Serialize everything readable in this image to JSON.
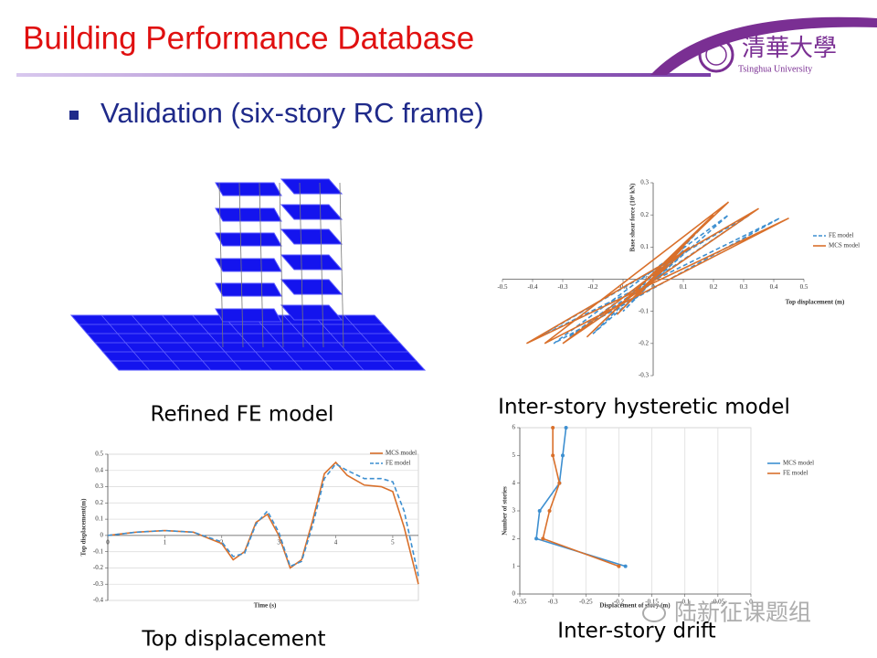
{
  "header": {
    "title": "Building Performance Database",
    "logo_text": "清華大學",
    "logo_subtext": "Tsinghua University"
  },
  "bullet": "Validation (six-story RC frame)",
  "captions": [
    "Refined FE model",
    "Inter-story hysteretic model",
    "Top displacement",
    "Inter-story drift"
  ],
  "watermark": "陆新征课题组",
  "chart_data": [
    {
      "type": "line",
      "xlabel": "Top displacement (m)",
      "ylabel": "Base shear force (10⁴ kN)",
      "xlim": [
        -0.5,
        0.5
      ],
      "xticks": [
        -0.5,
        -0.4,
        -0.3,
        -0.2,
        -0.1,
        0,
        0.1,
        0.2,
        0.3,
        0.4,
        0.5
      ],
      "ylim": [
        -0.3,
        0.3
      ],
      "yticks": [
        -0.3,
        -0.2,
        -0.1,
        0,
        0.1,
        0.2,
        0.3
      ],
      "grid": "none",
      "series": [
        {
          "name": "FE model",
          "color": "#3d8fd0",
          "dashed": true,
          "x": [
            0,
            0.04,
            -0.05,
            0.1,
            -0.1,
            0.18,
            -0.2,
            0.25,
            -0.33,
            0.42,
            -0.4,
            0.32,
            -0.28,
            0.1,
            0
          ],
          "values": [
            0,
            0.04,
            -0.05,
            0.09,
            -0.1,
            0.18,
            -0.17,
            0.2,
            -0.2,
            0.19,
            -0.19,
            0.2,
            -0.18,
            0.08,
            0
          ]
        },
        {
          "name": "MCS model",
          "color": "#d9702b",
          "dashed": false,
          "x": [
            0,
            0.05,
            -0.05,
            0.1,
            -0.12,
            0.2,
            -0.22,
            0.25,
            -0.36,
            0.45,
            -0.42,
            0.35,
            -0.3,
            0.12,
            0
          ],
          "values": [
            0,
            0.05,
            -0.05,
            0.1,
            -0.11,
            0.2,
            -0.18,
            0.24,
            -0.2,
            0.19,
            -0.2,
            0.22,
            -0.2,
            0.1,
            0
          ]
        }
      ]
    },
    {
      "type": "line",
      "xlabel": "Time (s)",
      "ylabel": "Top displacement(m)",
      "xlim": [
        0,
        5.45
      ],
      "xticks": [
        0,
        1,
        2,
        3,
        4,
        5
      ],
      "ylim": [
        -0.4,
        0.5
      ],
      "yticks": [
        -0.4,
        -0.3,
        -0.2,
        -0.1,
        0,
        0.1,
        0.2,
        0.3,
        0.4,
        0.5
      ],
      "grid": "y",
      "series": [
        {
          "name": "MCS model",
          "color": "#d9702b",
          "dashed": false,
          "x": [
            0,
            0.5,
            1,
            1.5,
            2,
            2.2,
            2.4,
            2.6,
            2.8,
            3,
            3.2,
            3.4,
            3.6,
            3.8,
            4,
            4.2,
            4.5,
            4.8,
            5,
            5.2,
            5.45
          ],
          "values": [
            0,
            0.02,
            0.03,
            0.02,
            -0.05,
            -0.15,
            -0.1,
            0.08,
            0.13,
            0,
            -0.2,
            -0.15,
            0.1,
            0.38,
            0.45,
            0.37,
            0.31,
            0.3,
            0.27,
            0.05,
            -0.3
          ]
        },
        {
          "name": "FE model",
          "color": "#3d8fd0",
          "dashed": true,
          "x": [
            0,
            0.5,
            1,
            1.5,
            2,
            2.2,
            2.4,
            2.6,
            2.8,
            3,
            3.2,
            3.4,
            3.6,
            3.8,
            4,
            4.2,
            4.5,
            4.8,
            5,
            5.2,
            5.45
          ],
          "values": [
            0,
            0.02,
            0.03,
            0.02,
            -0.04,
            -0.13,
            -0.11,
            0.07,
            0.15,
            0.02,
            -0.19,
            -0.16,
            0.07,
            0.35,
            0.44,
            0.4,
            0.35,
            0.35,
            0.33,
            0.15,
            -0.25
          ]
        }
      ]
    },
    {
      "type": "line",
      "xlabel": "Displacement of story (m)",
      "ylabel": "Number of stories",
      "xlim": [
        -0.35,
        0
      ],
      "xticks": [
        -0.35,
        -0.3,
        -0.25,
        -0.2,
        -0.15,
        -0.1,
        -0.05,
        0
      ],
      "ylim": [
        0,
        6
      ],
      "yticks": [
        0,
        1,
        2,
        3,
        4,
        5,
        6
      ],
      "grid": "x",
      "series": [
        {
          "name": "MCS model",
          "color": "#3d8fd0",
          "dashed": false,
          "marker": true,
          "x": [
            -0.19,
            -0.325,
            -0.32,
            -0.29,
            -0.285,
            -0.28
          ],
          "values": [
            1,
            2,
            3,
            4,
            5,
            6
          ]
        },
        {
          "name": "FE model",
          "color": "#d9702b",
          "dashed": false,
          "marker": true,
          "x": [
            -0.2,
            -0.315,
            -0.305,
            -0.29,
            -0.3,
            -0.3
          ],
          "values": [
            1,
            2,
            3,
            4,
            5,
            6
          ]
        }
      ]
    }
  ]
}
